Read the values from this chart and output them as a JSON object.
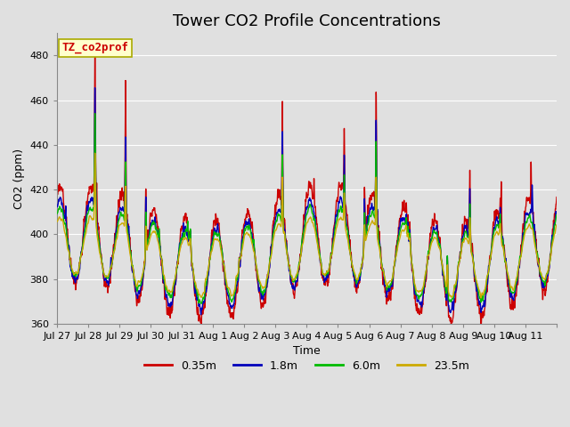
{
  "title": "Tower CO2 Profile Concentrations",
  "xlabel": "Time",
  "ylabel": "CO2 (ppm)",
  "ylim": [
    360,
    490
  ],
  "yticks": [
    360,
    380,
    400,
    420,
    440,
    460,
    480
  ],
  "legend_label": "TZ_co2prof",
  "series_labels": [
    "0.35m",
    "1.8m",
    "6.0m",
    "23.5m"
  ],
  "series_colors": [
    "#cc0000",
    "#0000bb",
    "#00bb00",
    "#ccaa00"
  ],
  "xtick_labels": [
    "Jul 27",
    "Jul 28",
    "Jul 29",
    "Jul 30",
    "Jul 31",
    "Aug 1",
    "Aug 2",
    "Aug 3",
    "Aug 4",
    "Aug 5",
    "Aug 6",
    "Aug 7",
    "Aug 8",
    "Aug 9",
    "Aug 10",
    "Aug 11"
  ],
  "background_color": "#e0e0e0",
  "plot_bg_color": "#e0e0e0",
  "grid_color": "#ffffff",
  "title_fontsize": 13,
  "label_fontsize": 9,
  "tick_fontsize": 8,
  "legend_box_facecolor": "#ffffcc",
  "legend_box_edgecolor": "#aaaa00",
  "legend_text_color": "#cc0000"
}
